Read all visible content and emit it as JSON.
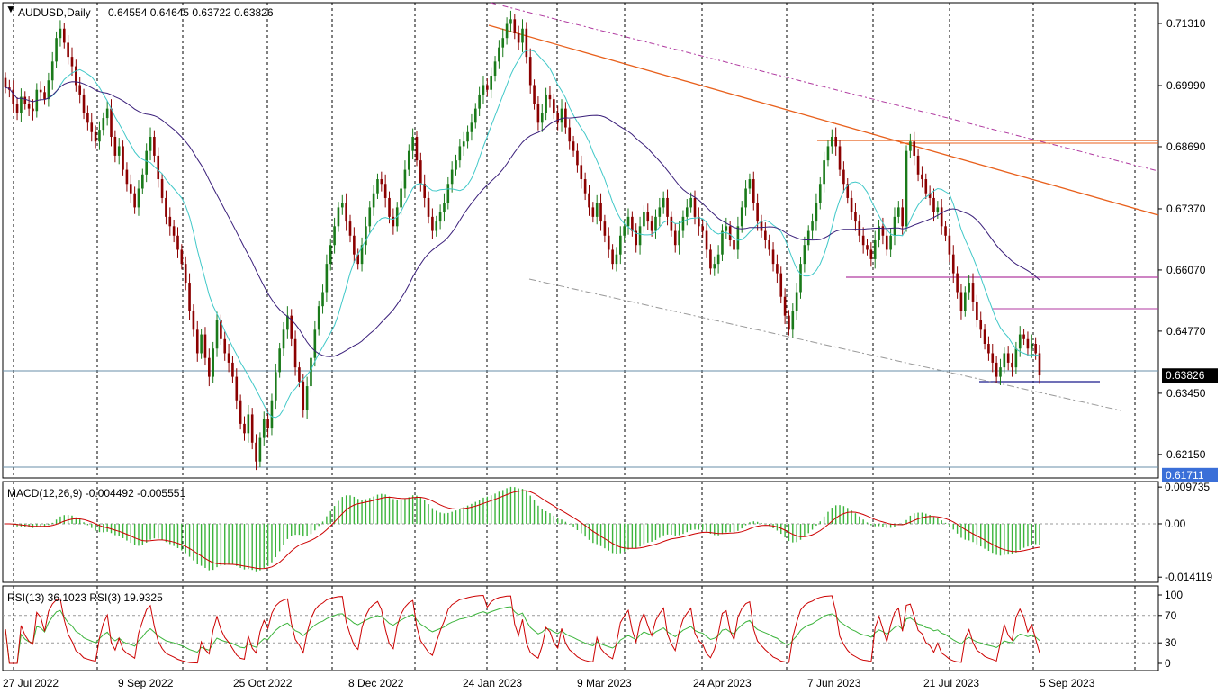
{
  "header": {
    "symbol": "AUDUSD,Daily",
    "ohlc": "0.64554 0.64645 0.63722 0.63826"
  },
  "macd_header": "MACD(12,26,9) -0.004492 -0.005551",
  "rsi_header": "RSI(13) 36.1023  RSI(3) 19.9325",
  "colors": {
    "bull": "#1a7a1a",
    "bear": "#8b0000",
    "ma_fast": "#40c8c8",
    "ma_slow": "#3a1f7a",
    "trend_orange": "#e8601c",
    "trend_magenta": "#b03aa0",
    "support_blue": "#1a1a8c",
    "histogram": "#3cb43c",
    "macd_signal": "#cc0000",
    "rsi13": "#3cb43c",
    "rsi3": "#cc0000",
    "current_price_tag": "#000000",
    "low_price_tag": "#3a6fd8"
  },
  "chart_data": [
    {
      "type": "candlestick",
      "title": "AUDUSD,Daily",
      "x_tick_labels": [
        "27 Jul 2022",
        "9 Sep 2022",
        "25 Oct 2022",
        "8 Dec 2022",
        "24 Jan 2023",
        "9 Mar 2023",
        "24 Apr 2023",
        "7 Jun 2023",
        "21 Jul 2023",
        "5 Sep 2023"
      ],
      "y_tick_labels": [
        "0.71310",
        "0.69990",
        "0.68690",
        "0.67370",
        "0.66070",
        "0.64770",
        "0.63450",
        "0.62150"
      ],
      "ylim": [
        0.6165,
        0.7175
      ],
      "current_price": "0.63826",
      "marked_low": "0.61711",
      "closes": [
        0.6995,
        0.699,
        0.696,
        0.694,
        0.6975,
        0.696,
        0.695,
        0.6945,
        0.699,
        0.6985,
        0.697,
        0.701,
        0.705,
        0.71,
        0.712,
        0.709,
        0.706,
        0.704,
        0.7,
        0.698,
        0.694,
        0.692,
        0.69,
        0.688,
        0.6905,
        0.693,
        0.695,
        0.689,
        0.685,
        0.687,
        0.682,
        0.679,
        0.677,
        0.674,
        0.678,
        0.681,
        0.686,
        0.689,
        0.685,
        0.68,
        0.676,
        0.672,
        0.67,
        0.668,
        0.665,
        0.662,
        0.658,
        0.652,
        0.648,
        0.643,
        0.647,
        0.642,
        0.638,
        0.644,
        0.65,
        0.646,
        0.643,
        0.641,
        0.638,
        0.633,
        0.628,
        0.626,
        0.63,
        0.624,
        0.62,
        0.625,
        0.629,
        0.627,
        0.633,
        0.639,
        0.644,
        0.648,
        0.651,
        0.646,
        0.64,
        0.637,
        0.631,
        0.636,
        0.642,
        0.648,
        0.653,
        0.656,
        0.662,
        0.666,
        0.67,
        0.674,
        0.675,
        0.671,
        0.668,
        0.664,
        0.662,
        0.666,
        0.67,
        0.674,
        0.677,
        0.68,
        0.679,
        0.676,
        0.672,
        0.67,
        0.674,
        0.678,
        0.682,
        0.686,
        0.689,
        0.684,
        0.679,
        0.676,
        0.672,
        0.669,
        0.671,
        0.673,
        0.675,
        0.679,
        0.682,
        0.684,
        0.687,
        0.688,
        0.69,
        0.692,
        0.695,
        0.698,
        0.7,
        0.699,
        0.702,
        0.705,
        0.708,
        0.71,
        0.713,
        0.714,
        0.711,
        0.709,
        0.712,
        0.706,
        0.7,
        0.696,
        0.692,
        0.694,
        0.698,
        0.697,
        0.694,
        0.692,
        0.695,
        0.691,
        0.688,
        0.686,
        0.683,
        0.68,
        0.677,
        0.674,
        0.672,
        0.675,
        0.671,
        0.668,
        0.665,
        0.662,
        0.664,
        0.668,
        0.67,
        0.672,
        0.669,
        0.666,
        0.67,
        0.673,
        0.671,
        0.669,
        0.672,
        0.674,
        0.676,
        0.672,
        0.669,
        0.666,
        0.669,
        0.672,
        0.674,
        0.676,
        0.672,
        0.67,
        0.669,
        0.665,
        0.661,
        0.662,
        0.664,
        0.669,
        0.67,
        0.667,
        0.665,
        0.67,
        0.674,
        0.678,
        0.68,
        0.675,
        0.671,
        0.669,
        0.667,
        0.665,
        0.662,
        0.66,
        0.655,
        0.651,
        0.648,
        0.652,
        0.656,
        0.662,
        0.666,
        0.669,
        0.671,
        0.675,
        0.679,
        0.684,
        0.687,
        0.689,
        0.687,
        0.682,
        0.679,
        0.676,
        0.673,
        0.671,
        0.668,
        0.666,
        0.665,
        0.663,
        0.667,
        0.67,
        0.668,
        0.665,
        0.668,
        0.672,
        0.674,
        0.67,
        0.686,
        0.688,
        0.685,
        0.681,
        0.68,
        0.677,
        0.676,
        0.673,
        0.674,
        0.67,
        0.668,
        0.664,
        0.66,
        0.656,
        0.652,
        0.656,
        0.658,
        0.654,
        0.65,
        0.648,
        0.645,
        0.643,
        0.641,
        0.638,
        0.64,
        0.643,
        0.641,
        0.64,
        0.644,
        0.647,
        0.646,
        0.644,
        0.645,
        0.643,
        0.6383
      ]
    },
    {
      "type": "bar",
      "title": "MACD(12,26,9)",
      "y_tick_labels": [
        "0.009735",
        "0.00",
        "-0.014119"
      ],
      "ylim": [
        -0.0155,
        0.0112
      ],
      "macd_value": "-0.004492",
      "signal_value": "-0.005551"
    },
    {
      "type": "line",
      "title": "RSI(13) / RSI(3)",
      "y_tick_labels": [
        "100",
        "70",
        "30",
        "0"
      ],
      "ylim": [
        0,
        100
      ],
      "series": [
        {
          "name": "RSI(13)",
          "last": 36.1023
        },
        {
          "name": "RSI(3)",
          "last": 19.9325
        }
      ]
    }
  ]
}
